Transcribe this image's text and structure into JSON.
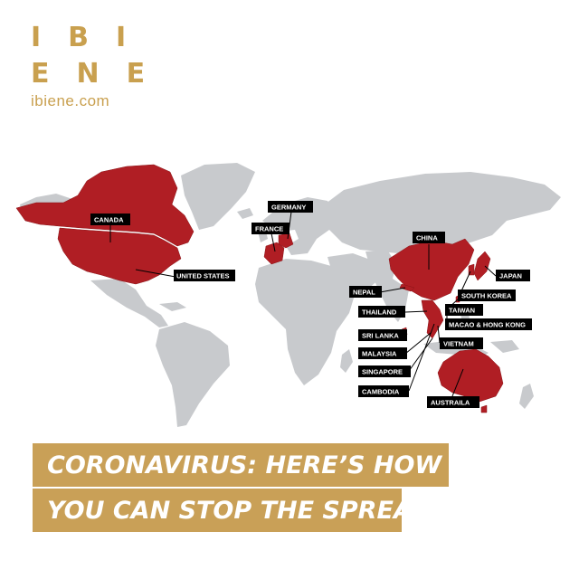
{
  "logo": {
    "line1": "IBI",
    "line2": "ENE",
    "url": "ibiene.com"
  },
  "colors": {
    "brand_gold": "#c9a04f",
    "land_gray": "#c8cacd",
    "affected_red": "#b01e24",
    "label_bg": "#000000"
  },
  "map": {
    "labels": {
      "canada": "CANADA",
      "united_states": "UNITED STATES",
      "germany": "GERMANY",
      "france": "FRANCE",
      "china": "CHINA",
      "japan": "JAPAN",
      "nepal": "NEPAL",
      "south_korea": "SOUTH KOREA",
      "taiwan": "TAIWAN",
      "thailand": "THAILAND",
      "macao_hong_kong": "MACAO & HONG KONG",
      "sri_lanka": "SRI LANKA",
      "vietnam": "VIETNAM",
      "malaysia": "MALAYSIA",
      "singapore": "SINGAPORE",
      "cambodia": "CAMBODIA",
      "australia": "AUSTRAILA"
    }
  },
  "banner": {
    "line1": "CORONAVIRUS: HERE’S HOW",
    "line2": "YOU CAN STOP THE SPREAD"
  }
}
